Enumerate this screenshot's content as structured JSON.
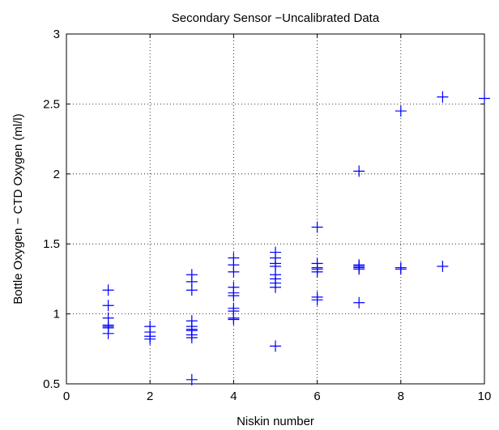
{
  "chart_data": {
    "type": "scatter",
    "title": "Secondary Sensor −Uncalibrated Data",
    "xlabel": "Niskin number",
    "ylabel": "Bottle Oxygen − CTD Oxygen (ml/l)",
    "xlim": [
      0,
      10
    ],
    "ylim": [
      0.5,
      3
    ],
    "xticks": [
      "0",
      "2",
      "4",
      "6",
      "8",
      "10"
    ],
    "yticks": [
      "0.5",
      "1",
      "1.5",
      "2",
      "2.5",
      "3"
    ],
    "grid": true,
    "marker": "+",
    "colors": {
      "marker": "#0000ff",
      "grid": "#000000",
      "axis": "#000000"
    },
    "series": [
      {
        "x": [
          1,
          1,
          1,
          1,
          1,
          1,
          1,
          2,
          2,
          2,
          2,
          3,
          3,
          3,
          3,
          3,
          3,
          3,
          3,
          3,
          3,
          4,
          4,
          4,
          4,
          4,
          4,
          4,
          4,
          4,
          4,
          5,
          5,
          5,
          5,
          5,
          5,
          5,
          5,
          5,
          6,
          6,
          6,
          6,
          6,
          6,
          6,
          7,
          7,
          7,
          7,
          7,
          7,
          8,
          8,
          8,
          9,
          9,
          10
        ],
        "y": [
          1.17,
          1.06,
          0.97,
          0.92,
          0.91,
          0.9,
          0.86,
          0.91,
          0.87,
          0.84,
          0.82,
          1.28,
          1.23,
          1.17,
          0.95,
          0.91,
          0.89,
          0.88,
          0.85,
          0.83,
          0.53,
          1.4,
          1.35,
          1.3,
          1.19,
          1.15,
          1.13,
          1.04,
          1.02,
          0.97,
          0.96,
          1.44,
          1.4,
          1.36,
          1.34,
          1.28,
          1.25,
          1.22,
          1.19,
          0.77,
          1.62,
          1.36,
          1.33,
          1.32,
          1.3,
          1.12,
          1.1,
          2.02,
          1.35,
          1.34,
          1.33,
          1.32,
          1.08,
          2.45,
          1.33,
          1.32,
          2.55,
          1.34,
          2.54
        ]
      }
    ]
  }
}
